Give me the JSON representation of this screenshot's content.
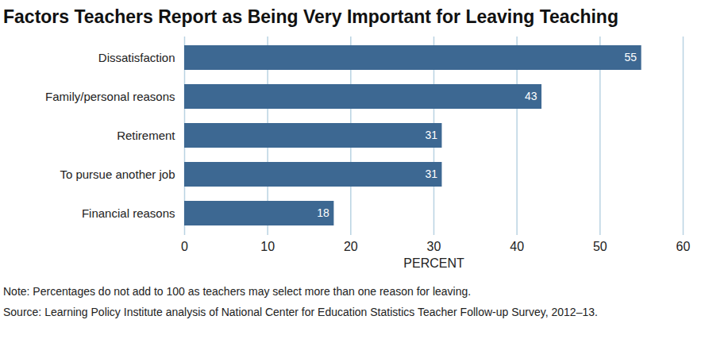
{
  "chart_data": {
    "type": "bar",
    "orientation": "horizontal",
    "title": "Factors Teachers Report as Being Very Important for Leaving Teaching",
    "categories": [
      "Dissatisfaction",
      "Family/personal reasons",
      "Retirement",
      "To pursue another job",
      "Financial reasons"
    ],
    "values": [
      55,
      43,
      31,
      31,
      18
    ],
    "color": "#3d6892",
    "xlabel": "PERCENT",
    "xlim": [
      0,
      60
    ],
    "xticks": [
      0,
      10,
      20,
      30,
      40,
      50,
      60
    ],
    "grid": true,
    "data_labels": true,
    "annotations": [
      "Note: Percentages do not add to 100 as teachers may select more than one reason for leaving.",
      "Source: Learning Policy Institute analysis of National Center for Education Statistics Teacher Follow-up Survey, 2012–13."
    ]
  }
}
